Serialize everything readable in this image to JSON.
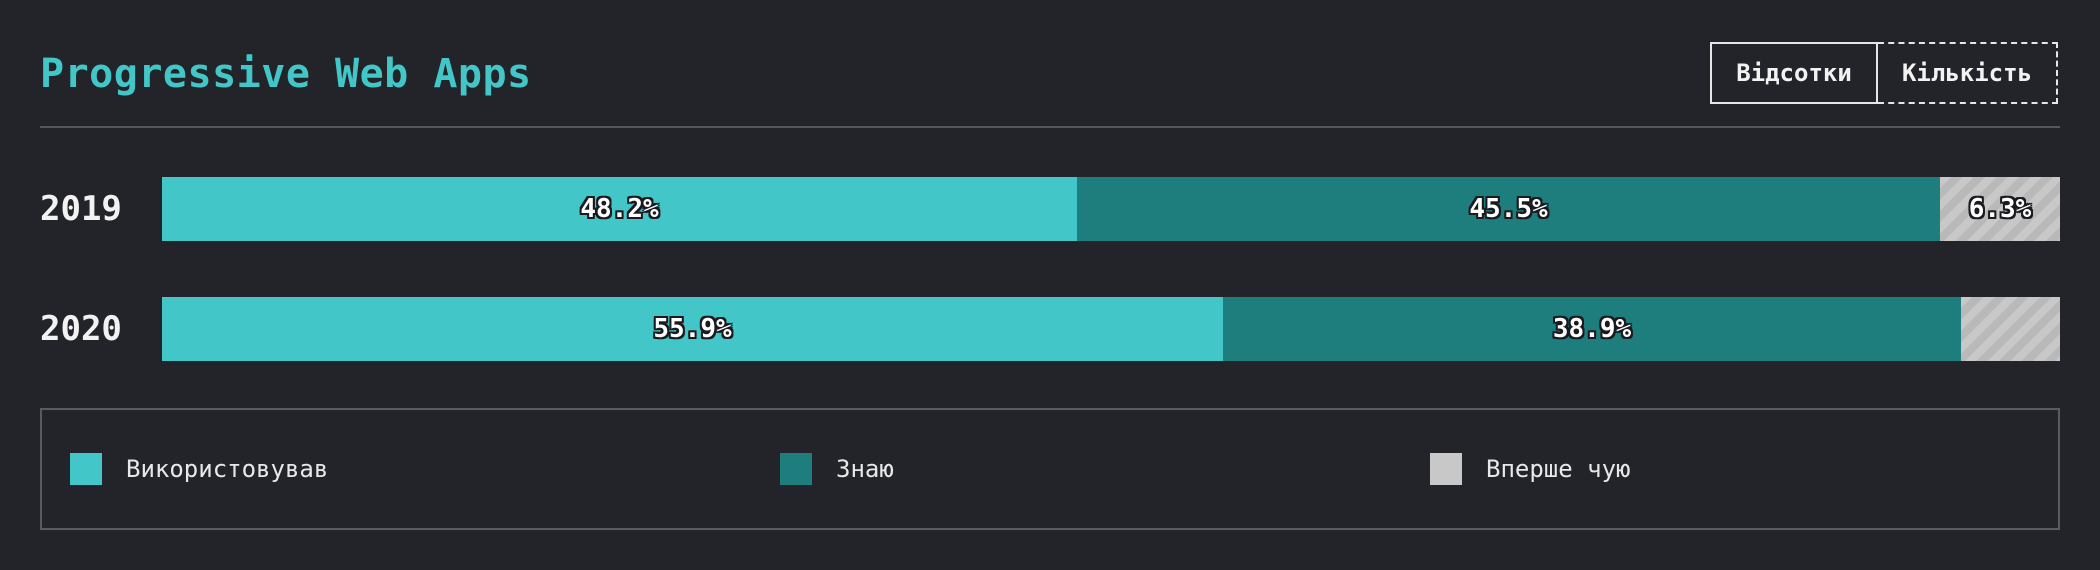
{
  "title": "Progressive Web Apps",
  "toggle": {
    "percent_label": "Відсотки",
    "count_label": "Кількість",
    "active": "percent"
  },
  "colors": {
    "used": "#42c6c8",
    "know": "#1e7d7d",
    "never": "#c8c8c8",
    "background": "#232429"
  },
  "chart_data": {
    "type": "bar",
    "orientation": "horizontal",
    "stacked": true,
    "normalized": true,
    "categories": [
      "2019",
      "2020"
    ],
    "series": [
      {
        "name": "Використовував",
        "values": [
          48.2,
          55.9
        ],
        "labels": [
          "48.2%",
          "55.9%"
        ]
      },
      {
        "name": "Знаю",
        "values": [
          45.5,
          38.9
        ],
        "labels": [
          "45.5%",
          "38.9%"
        ]
      },
      {
        "name": "Вперше чую",
        "values": [
          6.3,
          5.2
        ],
        "labels": [
          "6.3%",
          ""
        ]
      }
    ],
    "xlim": [
      0,
      100
    ],
    "legend": "bottom"
  }
}
